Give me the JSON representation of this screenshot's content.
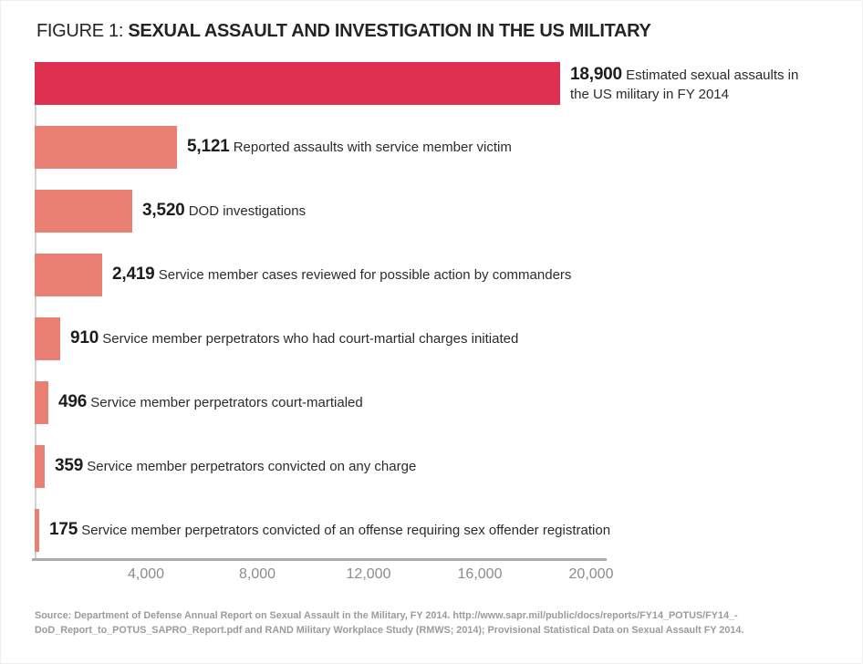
{
  "title": {
    "prefix": "FIGURE 1:",
    "main": "SEXUAL ASSAULT AND INVESTIGATION IN THE US MILITARY"
  },
  "chart_data": {
    "type": "bar",
    "orientation": "horizontal",
    "xlim": [
      0,
      20000
    ],
    "grid": false,
    "legend": false,
    "accent_color": "#de3152",
    "bar_color": "#e98073",
    "x_ticks": [
      {
        "value": 4000,
        "label": "4,000"
      },
      {
        "value": 8000,
        "label": "8,000"
      },
      {
        "value": 12000,
        "label": "12,000"
      },
      {
        "value": 16000,
        "label": "16,000"
      },
      {
        "value": 20000,
        "label": "20,000"
      }
    ],
    "bars": [
      {
        "value": 18900,
        "value_label": "18,900",
        "description": "Estimated sexual assaults in the US military in FY 2014",
        "color": "#de3152"
      },
      {
        "value": 5121,
        "value_label": "5,121",
        "description": "Reported assaults with service member victim",
        "color": "#e98073"
      },
      {
        "value": 3520,
        "value_label": "3,520",
        "description": "DOD investigations",
        "color": "#e98073"
      },
      {
        "value": 2419,
        "value_label": "2,419",
        "description": "Service member cases reviewed for possible action by commanders",
        "color": "#e98073"
      },
      {
        "value": 910,
        "value_label": "910",
        "description": "Service member perpetrators who had court-martial charges initiated",
        "color": "#e98073"
      },
      {
        "value": 496,
        "value_label": "496",
        "description": "Service member perpetrators court-martialed",
        "color": "#e98073"
      },
      {
        "value": 359,
        "value_label": "359",
        "description": "Service member perpetrators convicted on any charge",
        "color": "#e98073"
      },
      {
        "value": 175,
        "value_label": "175",
        "description": "Service member perpetrators convicted of an offense requiring sex offender registration",
        "color": "#e98073"
      }
    ]
  },
  "source": {
    "line1": "Source: Department of Defense Annual Report on Sexual Assault in the Military, FY 2014. http://www.sapr.mil/public/docs/reports/FY14_POTUS/FY14_-",
    "line2": "DoD_Report_to_POTUS_SAPRO_Report.pdf and RAND Military Workplace Study (RMWS; 2014); Provisional Statistical Data on Sexual Assault FY 2014."
  }
}
